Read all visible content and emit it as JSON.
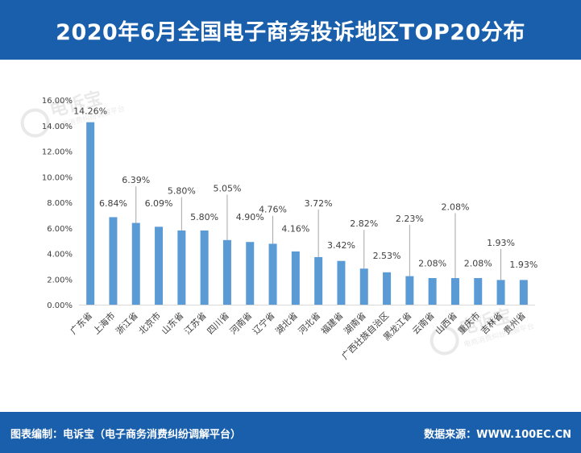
{
  "header": {
    "title": "2020年6月全国电子商务投诉地区TOP20分布"
  },
  "footer": {
    "left": "图表编制：电诉宝（电子商务消费纠纷调解平台）",
    "right": "数据来源：WWW.100EC.CN"
  },
  "watermark": {
    "brand": "电诉宝",
    "sub": "电商消费纠纷调解平台"
  },
  "colors": {
    "bar": "#5b9bd5",
    "header": "#1a5fab",
    "axis": "#d9d9d9",
    "text": "#404040"
  },
  "chart_data": {
    "type": "bar",
    "title": "",
    "xlabel": "",
    "ylabel": "",
    "ylim": [
      0,
      16
    ],
    "ytick_step": 2,
    "ytick_labels": [
      "0.00%",
      "2.00%",
      "4.00%",
      "6.00%",
      "8.00%",
      "10.00%",
      "12.00%",
      "14.00%",
      "16.00%"
    ],
    "grid": false,
    "categories": [
      "广东省",
      "上海市",
      "浙江省",
      "北京市",
      "山东省",
      "江苏省",
      "四川省",
      "河南省",
      "辽宁省",
      "湖北省",
      "河北省",
      "福建省",
      "湖南省",
      "广西壮族自治区",
      "黑龙江省",
      "云南省",
      "山西省",
      "重庆市",
      "吉林省",
      "贵州省"
    ],
    "values": [
      14.26,
      6.84,
      6.39,
      6.09,
      5.8,
      5.8,
      5.05,
      4.9,
      4.76,
      4.16,
      3.72,
      3.42,
      2.82,
      2.53,
      2.23,
      2.08,
      2.08,
      2.08,
      1.93,
      1.93
    ],
    "labels": [
      "14.26%",
      "6.84%",
      "6.39%",
      "6.09%",
      "5.80%",
      "5.80%",
      "5.05%",
      "4.90%",
      "4.76%",
      "4.16%",
      "3.72%",
      "3.42%",
      "2.82%",
      "2.53%",
      "2.23%",
      "2.08%",
      "2.08%",
      "2.08%",
      "1.93%",
      "1.93%"
    ]
  }
}
